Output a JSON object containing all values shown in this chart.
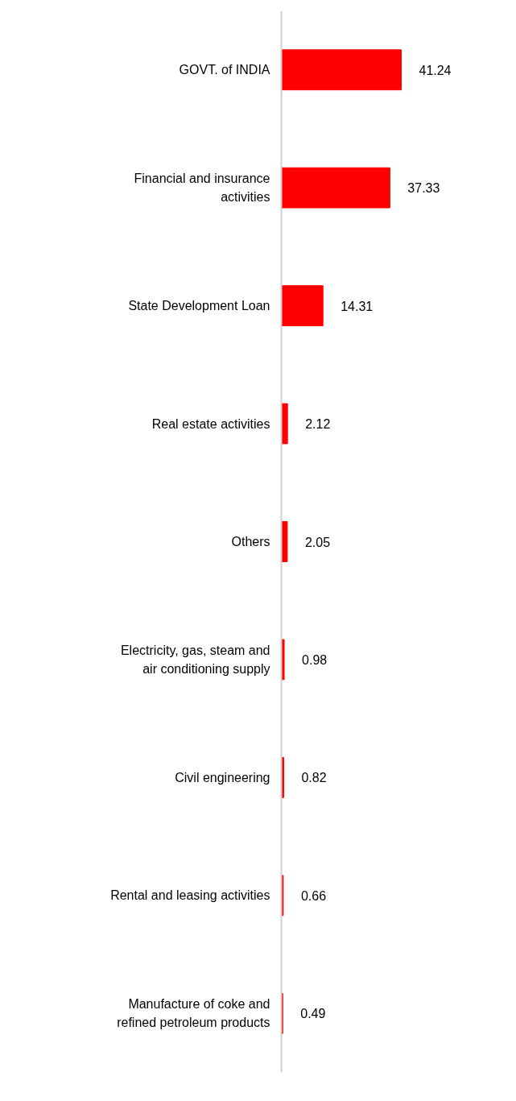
{
  "chart_data": {
    "type": "bar",
    "orientation": "horizontal",
    "data_labels": true,
    "categories": [
      "GOVT. of INDIA",
      "Financial and insurance activities",
      "State Development Loan",
      "Real estate activities",
      "Others",
      "Electricity, gas, steam and air conditioning supply",
      "Civil engineering",
      "Rental and leasing activities",
      "Manufacture of coke and refined petroleum products"
    ],
    "values": [
      41.24,
      37.33,
      14.31,
      2.12,
      2.05,
      0.98,
      0.82,
      0.66,
      0.49
    ],
    "color": "#ff0000",
    "grid": false
  }
}
